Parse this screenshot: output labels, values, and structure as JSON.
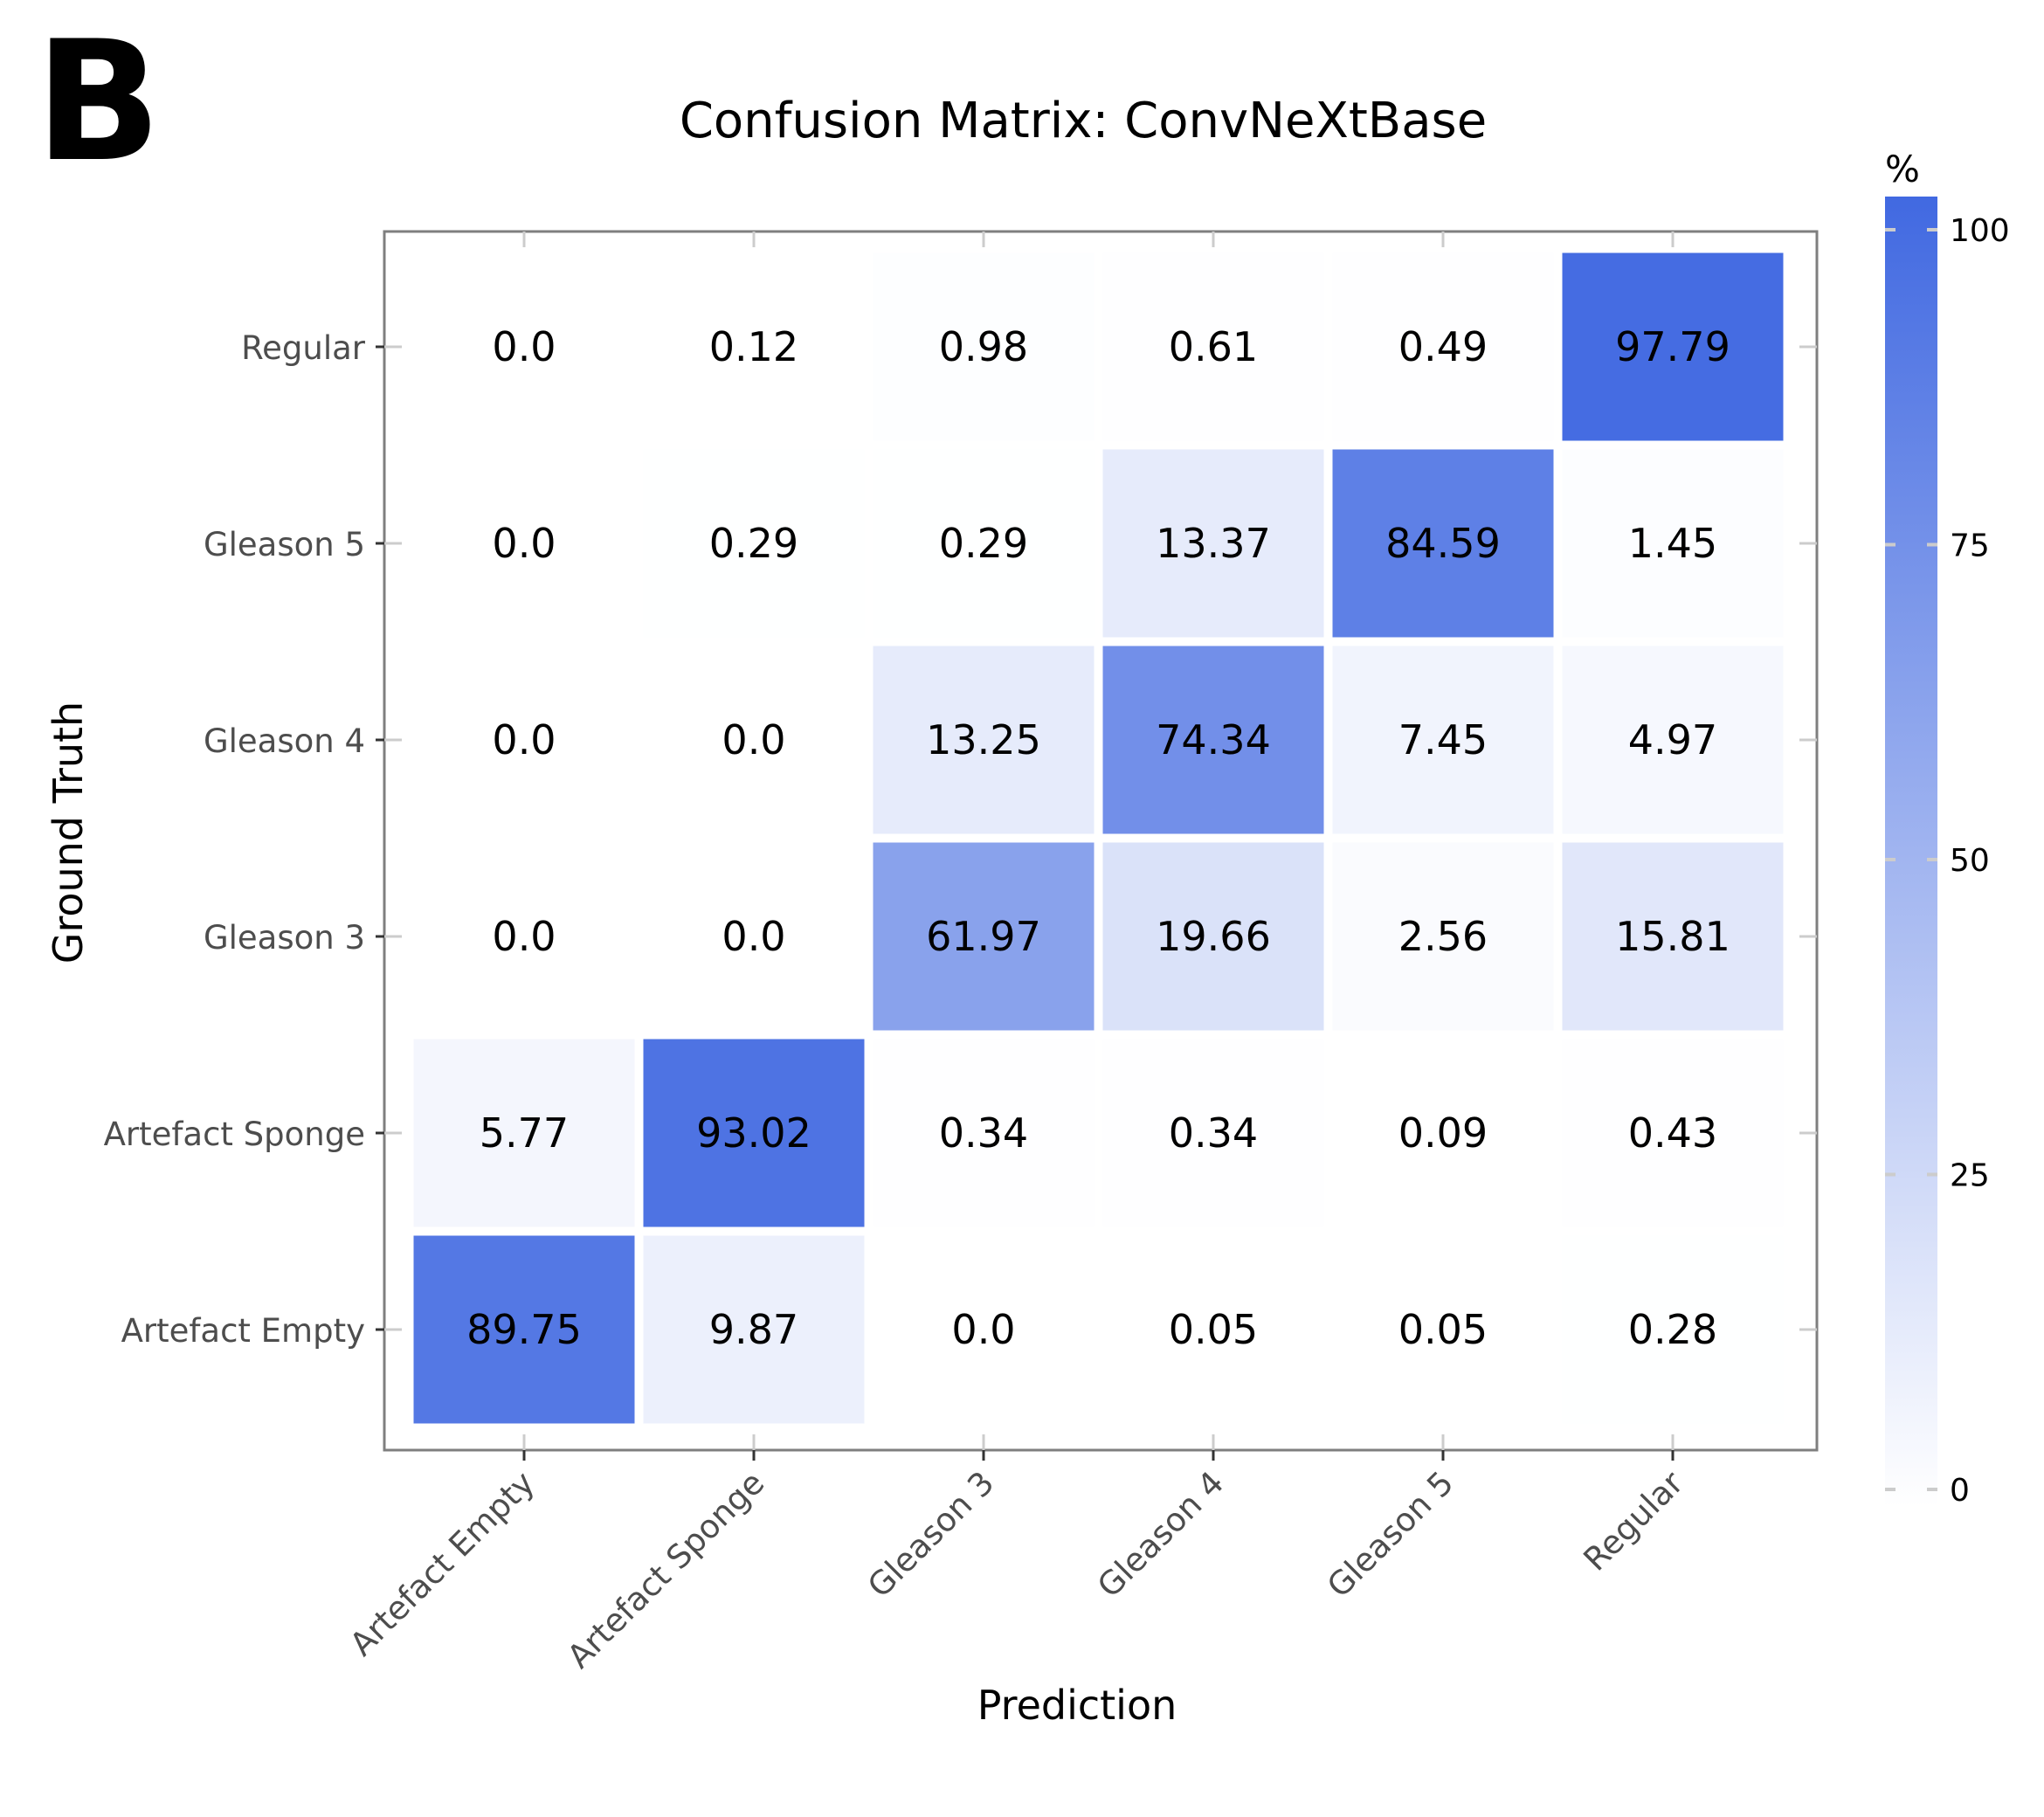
{
  "panel_label": "B",
  "colors": {
    "low": "#ffffff",
    "high": "#4169e1",
    "frame": "#7f7f7f",
    "tick": "#cccccc",
    "text": "#000000",
    "axis_text": "#4d4d4d"
  },
  "chart_data": {
    "type": "heatmap",
    "title": "Confusion Matrix: ConvNeXtBase",
    "xlabel": "Prediction",
    "ylabel": "Ground Truth",
    "x_categories": [
      "Artefact Empty",
      "Artefact Sponge",
      "Gleason 3",
      "Gleason 4",
      "Gleason 5",
      "Regular"
    ],
    "y_categories": [
      "Regular",
      "Gleason 5",
      "Gleason 4",
      "Gleason 3",
      "Artefact Sponge",
      "Artefact Empty"
    ],
    "values": [
      [
        0.0,
        0.12,
        0.98,
        0.61,
        0.49,
        97.79
      ],
      [
        0.0,
        0.29,
        0.29,
        13.37,
        84.59,
        1.45
      ],
      [
        0.0,
        0.0,
        13.25,
        74.34,
        7.45,
        4.97
      ],
      [
        0.0,
        0.0,
        61.97,
        19.66,
        2.56,
        15.81
      ],
      [
        5.77,
        93.02,
        0.34,
        0.34,
        0.09,
        0.43
      ],
      [
        89.75,
        9.87,
        0.0,
        0.05,
        0.05,
        0.28
      ]
    ],
    "value_labels": [
      [
        "0.0",
        "0.12",
        "0.98",
        "0.61",
        "0.49",
        "97.79"
      ],
      [
        "0.0",
        "0.29",
        "0.29",
        "13.37",
        "84.59",
        "1.45"
      ],
      [
        "0.0",
        "0.0",
        "13.25",
        "74.34",
        "7.45",
        "4.97"
      ],
      [
        "0.0",
        "0.0",
        "61.97",
        "19.66",
        "2.56",
        "15.81"
      ],
      [
        "5.77",
        "93.02",
        "0.34",
        "0.34",
        "0.09",
        "0.43"
      ],
      [
        "89.75",
        "9.87",
        "0.0",
        "0.05",
        "0.05",
        "0.28"
      ]
    ],
    "colorbar": {
      "title": "%",
      "ticks": [
        0,
        25,
        50,
        75,
        100
      ],
      "range": [
        0,
        100
      ]
    }
  }
}
